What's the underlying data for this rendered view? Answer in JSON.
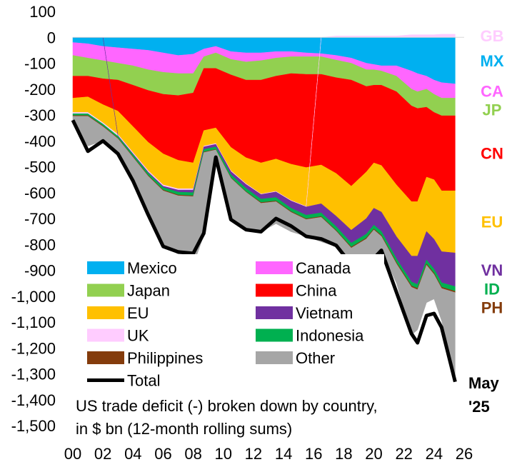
{
  "chart_data": {
    "type": "area",
    "subtitle": [
      "US trade deficit (-) broken down by country,",
      "in $ bn (12-month rolling sums)"
    ],
    "date_label": [
      "May",
      "'25"
    ],
    "ylim": [
      -1500,
      100
    ],
    "yticks": [
      100,
      0,
      -100,
      -200,
      -300,
      -400,
      -500,
      -600,
      -700,
      -800,
      -900,
      -1000,
      -1100,
      -1200,
      -1300,
      -1400,
      -1500
    ],
    "ytick_labels": [
      "100",
      "0",
      "-100",
      "-200",
      "-300",
      "-400",
      "-500",
      "-600",
      "-700",
      "-800",
      "-900",
      "-1,000",
      "-1,100",
      "-1,200",
      "-1,300",
      "-1,400",
      "-1,500"
    ],
    "xlim": [
      2000,
      2026
    ],
    "xticks": [
      2000,
      2002,
      2004,
      2006,
      2008,
      2010,
      2012,
      2014,
      2016,
      2018,
      2020,
      2022,
      2024,
      2026
    ],
    "xtick_labels": [
      "00",
      "02",
      "04",
      "06",
      "08",
      "10",
      "12",
      "14",
      "16",
      "18",
      "20",
      "22",
      "24",
      "26"
    ],
    "x": [
      2000.0,
      2001.0,
      2002.0,
      2003.0,
      2004.0,
      2005.0,
      2006.0,
      2007.0,
      2008.0,
      2008.7,
      2009.5,
      2010.5,
      2011.5,
      2012.5,
      2013.5,
      2014.5,
      2015.5,
      2016.5,
      2017.5,
      2018.5,
      2019.5,
      2020.0,
      2020.5,
      2021.5,
      2022.5,
      2022.9,
      2023.5,
      2024.0,
      2024.5,
      2025.4
    ],
    "series": [
      {
        "name": "Mexico",
        "code": "MX",
        "color": "#00B0F0",
        "values": [
          -20,
          -25,
          -35,
          -40,
          -45,
          -50,
          -60,
          -70,
          -65,
          -45,
          -35,
          -55,
          -60,
          -60,
          -55,
          -55,
          -60,
          -63,
          -70,
          -80,
          -100,
          -105,
          -110,
          -110,
          -130,
          -140,
          -150,
          -165,
          -175,
          -180
        ]
      },
      {
        "name": "Canada",
        "code": "CA",
        "color": "#FF66FF",
        "values": [
          -50,
          -55,
          -55,
          -60,
          -65,
          -75,
          -75,
          -70,
          -75,
          -30,
          -25,
          -30,
          -35,
          -30,
          -25,
          -20,
          -15,
          -12,
          -18,
          -20,
          -25,
          -20,
          -20,
          -40,
          -70,
          -70,
          -50,
          -55,
          -60,
          -55
        ]
      },
      {
        "name": "Japan",
        "code": "JP",
        "color": "#92D050",
        "values": [
          -80,
          -70,
          -70,
          -65,
          -75,
          -80,
          -85,
          -85,
          -75,
          -45,
          -60,
          -60,
          -70,
          -75,
          -70,
          -65,
          -68,
          -68,
          -68,
          -65,
          -65,
          -60,
          -55,
          -60,
          -65,
          -65,
          -70,
          -70,
          -68,
          -68
        ]
      },
      {
        "name": "China",
        "code": "CN",
        "color": "#FF0000",
        "values": [
          -85,
          -80,
          -100,
          -120,
          -160,
          -200,
          -230,
          -250,
          -270,
          -240,
          -230,
          -280,
          -300,
          -320,
          -320,
          -350,
          -360,
          -350,
          -370,
          -410,
          -330,
          -300,
          -310,
          -360,
          -370,
          -360,
          -270,
          -260,
          -290,
          -290
        ]
      },
      {
        "name": "EU",
        "code": "EU",
        "color": "#FFC000",
        "values": [
          -55,
          -60,
          -70,
          -90,
          -100,
          -110,
          -120,
          -110,
          -100,
          -60,
          -60,
          -90,
          -100,
          -120,
          -125,
          -140,
          -150,
          -150,
          -165,
          -170,
          -180,
          -175,
          -180,
          -200,
          -210,
          -210,
          -210,
          -230,
          -235,
          -240
        ]
      },
      {
        "name": "UK",
        "code": "GB",
        "color": "#FFCCFF",
        "values": [
          -5,
          -5,
          -5,
          -5,
          -5,
          -5,
          -5,
          -5,
          -5,
          -3,
          -3,
          -3,
          -3,
          -2,
          -2,
          -2,
          -2,
          0,
          5,
          5,
          5,
          5,
          5,
          5,
          10,
          10,
          10,
          10,
          12,
          12
        ]
      },
      {
        "name": "Vietnam",
        "code": "VN",
        "color": "#7030A0",
        "values": [
          0,
          0,
          0,
          -2,
          -3,
          -4,
          -5,
          -8,
          -10,
          -10,
          -10,
          -12,
          -15,
          -18,
          -22,
          -28,
          -32,
          -35,
          -40,
          -50,
          -60,
          -65,
          -75,
          -85,
          -100,
          -110,
          -110,
          -115,
          -120,
          -130
        ]
      },
      {
        "name": "Indonesia",
        "code": "ID",
        "color": "#00B050",
        "values": [
          -7,
          -7,
          -7,
          -7,
          -8,
          -9,
          -10,
          -11,
          -12,
          -10,
          -10,
          -12,
          -13,
          -13,
          -13,
          -13,
          -14,
          -14,
          -15,
          -15,
          -15,
          -15,
          -15,
          -15,
          -15,
          -15,
          -15,
          -16,
          -17,
          -18
        ]
      },
      {
        "name": "Philippines",
        "code": "PH",
        "color": "#843C0C",
        "values": [
          -3,
          -3,
          -3,
          -3,
          -3,
          -3,
          -3,
          -3,
          -3,
          -2,
          -2,
          -2,
          -2,
          -3,
          -3,
          -3,
          -3,
          -3,
          -3,
          -4,
          -4,
          -4,
          -4,
          -5,
          -5,
          -5,
          -5,
          -5,
          -5,
          -5
        ]
      },
      {
        "name": "Other",
        "code": "",
        "color": "#A6A6A6",
        "values": [
          -15,
          -115,
          -55,
          -50,
          -90,
          -150,
          -215,
          -225,
          -265,
          -320,
          -30,
          -160,
          -145,
          -110,
          -85,
          -75,
          -65,
          -95,
          -60,
          -65,
          -75,
          -105,
          -55,
          -75,
          -185,
          -155,
          -145,
          -95,
          -125,
          -335
        ]
      }
    ],
    "total": {
      "name": "Total",
      "color": "#000000",
      "values": [
        -320,
        -440,
        -400,
        -450,
        -555,
        -685,
        -808,
        -829,
        -835,
        -757,
        -463,
        -704,
        -743,
        -751,
        -700,
        -729,
        -769,
        -779,
        -804,
        -877,
        -857,
        -854,
        -823,
        -985,
        -1145,
        -1180,
        -1075,
        -1067,
        -1121,
        -1331
      ]
    },
    "legend_order": [
      "Mexico",
      "Canada",
      "Japan",
      "China",
      "EU",
      "Vietnam",
      "UK",
      "Indonesia",
      "Philippines",
      "Other",
      "Total"
    ],
    "right_labels": [
      "GB",
      "MX",
      "CA",
      "JP",
      "CN",
      "EU",
      "VN",
      "ID",
      "PH"
    ]
  }
}
